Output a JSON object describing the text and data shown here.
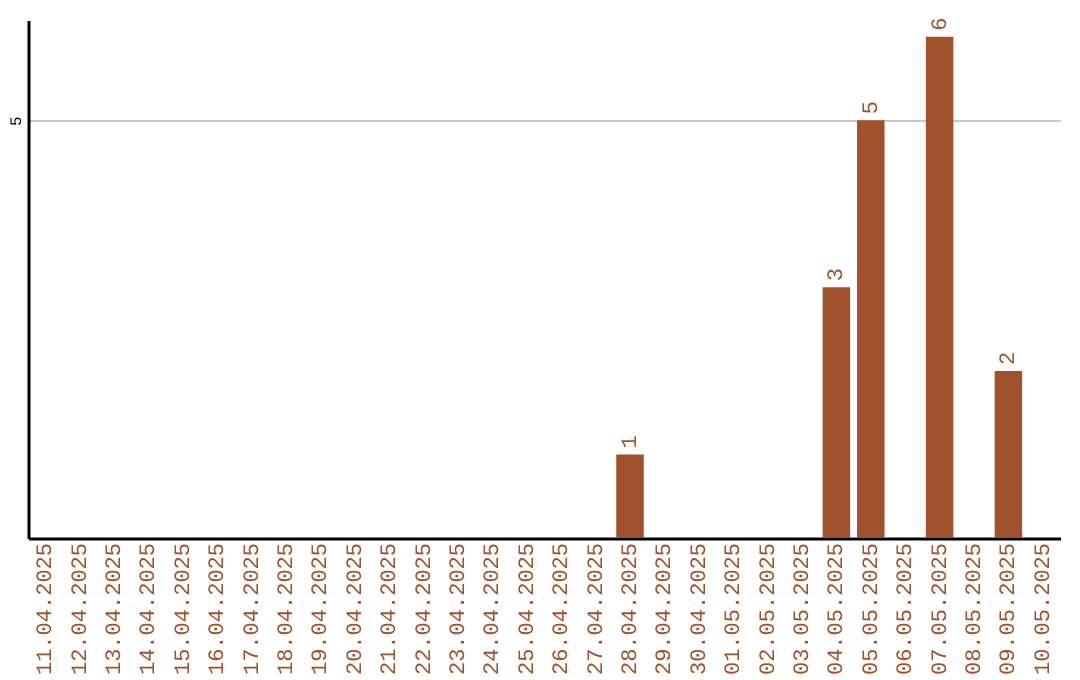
{
  "chart_data": {
    "type": "bar",
    "categories": [
      "11.04.2025",
      "12.04.2025",
      "13.04.2025",
      "14.04.2025",
      "15.04.2025",
      "16.04.2025",
      "17.04.2025",
      "18.04.2025",
      "19.04.2025",
      "20.04.2025",
      "21.04.2025",
      "22.04.2025",
      "23.04.2025",
      "24.04.2025",
      "25.04.2025",
      "26.04.2025",
      "27.04.2025",
      "28.04.2025",
      "29.04.2025",
      "30.04.2025",
      "01.05.2025",
      "02.05.2025",
      "03.05.2025",
      "04.05.2025",
      "05.05.2025",
      "06.05.2025",
      "07.05.2025",
      "08.05.2025",
      "09.05.2025",
      "10.05.2025"
    ],
    "values": [
      null,
      null,
      null,
      null,
      null,
      null,
      null,
      null,
      null,
      null,
      null,
      null,
      null,
      null,
      null,
      null,
      null,
      1,
      null,
      null,
      null,
      null,
      null,
      3,
      5,
      null,
      6,
      null,
      2,
      null
    ],
    "color": "#a0522d",
    "ylim": [
      0,
      6.2
    ],
    "yticks": [
      5
    ],
    "grid": "y",
    "data_labels": true
  }
}
